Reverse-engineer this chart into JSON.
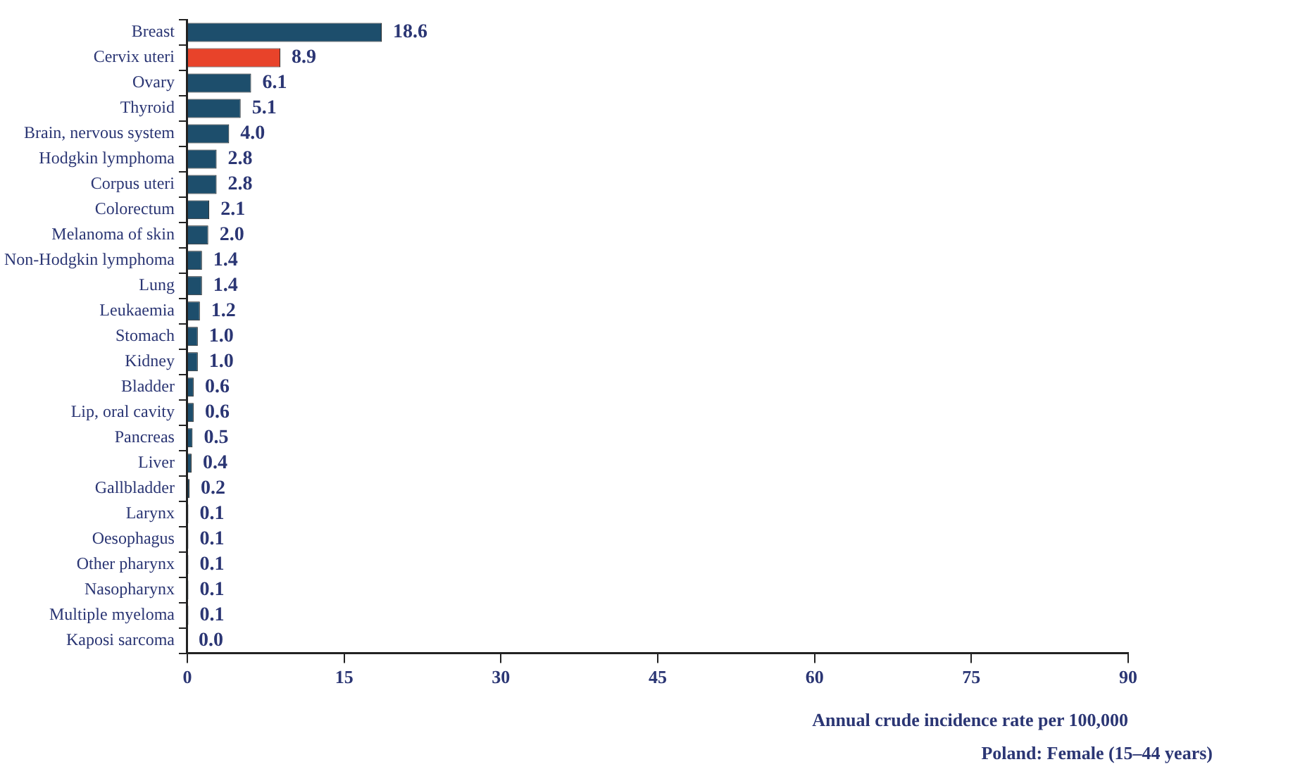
{
  "chart_data": {
    "type": "bar",
    "orientation": "horizontal",
    "xlabel": "Annual crude incidence rate per 100,000",
    "annotations": [
      "Poland: Female (15–44 years)"
    ],
    "categories": [
      "Breast",
      "Cervix uteri",
      "Ovary",
      "Thyroid",
      "Brain, nervous system",
      "Hodgkin lymphoma",
      "Corpus uteri",
      "Colorectum",
      "Melanoma of skin",
      "Non-Hodgkin lymphoma",
      "Lung",
      "Leukaemia",
      "Stomach",
      "Kidney",
      "Bladder",
      "Lip, oral cavity",
      "Pancreas",
      "Liver",
      "Gallbladder",
      "Larynx",
      "Oesophagus",
      "Other pharynx",
      "Nasopharynx",
      "Multiple myeloma",
      "Kaposi sarcoma"
    ],
    "values": [
      18.6,
      8.9,
      6.1,
      5.1,
      4.0,
      2.8,
      2.8,
      2.1,
      2.0,
      1.4,
      1.4,
      1.2,
      1.0,
      1.0,
      0.6,
      0.6,
      0.5,
      0.4,
      0.2,
      0.1,
      0.1,
      0.1,
      0.1,
      0.1,
      0.0
    ],
    "value_labels": [
      "18.6",
      "8.9",
      "6.1",
      "5.1",
      "4.0",
      "2.8",
      "2.8",
      "2.1",
      "2.0",
      "1.4",
      "1.4",
      "1.2",
      "1.0",
      "1.0",
      "0.6",
      "0.6",
      "0.5",
      "0.4",
      "0.2",
      "0.1",
      "0.1",
      "0.1",
      "0.1",
      "0.1",
      "0.0"
    ],
    "colors": [
      "#1d4e6c",
      "#e8432a",
      "#1d4e6c",
      "#1d4e6c",
      "#1d4e6c",
      "#1d4e6c",
      "#1d4e6c",
      "#1d4e6c",
      "#1d4e6c",
      "#1d4e6c",
      "#1d4e6c",
      "#1d4e6c",
      "#1d4e6c",
      "#1d4e6c",
      "#1d4e6c",
      "#1d4e6c",
      "#1d4e6c",
      "#1d4e6c",
      "#1d4e6c",
      "#1d4e6c",
      "#1d4e6c",
      "#1d4e6c",
      "#1d4e6c",
      "#1d4e6c",
      "#1d4e6c"
    ],
    "xlim": [
      0,
      90
    ],
    "xticks": [
      0,
      15,
      30,
      45,
      60,
      75,
      90
    ],
    "grid": false,
    "legend": false
  }
}
